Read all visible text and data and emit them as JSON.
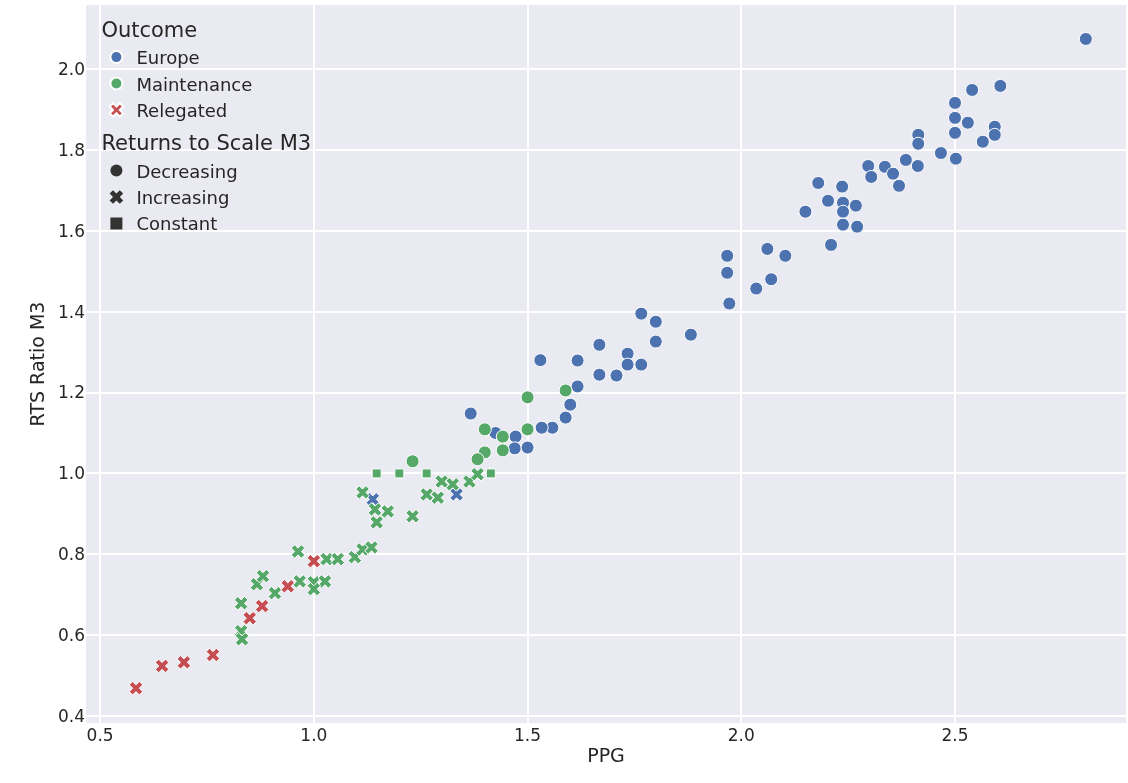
{
  "chart_data": {
    "type": "scatter",
    "xlabel": "PPG",
    "ylabel": "RTS Ratio M3",
    "legend_title": [
      "Outcome",
      "Returns to Scale M3"
    ],
    "xlim": [
      0.467,
      2.9
    ],
    "ylim": [
      0.383,
      2.158
    ],
    "xticks": [
      0.5,
      {
        "value": 1,
        "label": "1.0"
      },
      1.5,
      {
        "value": 2,
        "label": "2.0"
      },
      2.5
    ],
    "yticks": [
      0.4,
      0.6,
      0.8,
      {
        "value": 1,
        "label": "1.0"
      },
      1.2,
      1.4,
      1.6,
      1.8,
      {
        "value": 2,
        "label": "2.0"
      }
    ],
    "grid": true,
    "legend": "top left",
    "series": [
      {
        "name": "Europe",
        "color": "#4c72b0",
        "marker": "circle",
        "x": [
          1.882,
          1.972,
          1.967,
          1.967,
          2.035,
          2.07,
          2.061,
          2.103,
          2.15,
          2.21,
          2.18,
          2.203,
          2.236,
          2.238,
          2.238,
          2.238,
          2.268,
          2.271,
          2.297,
          2.304,
          2.336,
          2.355,
          2.369,
          2.385,
          2.413,
          2.806,
          2.54,
          2.606,
          2.5,
          2.5,
          2.53,
          2.5,
          2.593,
          2.593,
          2.565,
          2.502,
          2.467,
          2.414,
          2.414,
          1.367,
          1.53,
          1.617,
          1.668,
          1.766,
          1.8,
          1.8,
          1.734,
          1.734,
          1.766,
          1.668,
          1.708,
          1.617,
          1.6,
          1.589,
          1.558,
          1.533,
          1.472,
          1.47,
          1.5,
          1.425
        ],
        "values": [
          1.343,
          1.42,
          1.496,
          1.538,
          1.457,
          1.48,
          1.555,
          1.538,
          1.647,
          1.565,
          1.718,
          1.674,
          1.709,
          1.669,
          1.647,
          1.615,
          1.662,
          1.61,
          1.76,
          1.733,
          1.758,
          1.741,
          1.711,
          1.775,
          1.76,
          2.074,
          1.948,
          1.958,
          1.916,
          1.879,
          1.867,
          1.842,
          1.857,
          1.837,
          1.82,
          1.778,
          1.792,
          1.837,
          1.815,
          1.148,
          1.28,
          1.279,
          1.318,
          1.395,
          1.375,
          1.326,
          1.296,
          1.269,
          1.269,
          1.244,
          1.242,
          1.215,
          1.17,
          1.138,
          1.113,
          1.113,
          1.091,
          1.062,
          1.064,
          1.1
        ]
      },
      {
        "color": "#4c72b0",
        "marker": "cross",
        "x": [
          1.138,
          1.334
        ],
        "values": [
          0.936,
          0.948
        ]
      },
      {
        "name": "Maintenance",
        "color": "#55a868",
        "marker": "circle",
        "x": [
          1.231,
          1.4,
          1.5,
          1.589,
          1.442,
          1.5,
          1.442,
          1.4,
          1.383
        ],
        "values": [
          1.03,
          1.109,
          1.188,
          1.205,
          1.091,
          1.109,
          1.057,
          1.052,
          1.035
        ]
      },
      {
        "color": "#55a868",
        "marker": "cross",
        "x": [
          0.83,
          0.83,
          0.832,
          0.867,
          0.881,
          0.909,
          0.967,
          1.0,
          1.026,
          1.0,
          0.963,
          1.03,
          1.056,
          1.096,
          1.114,
          1.135,
          1.114,
          1.143,
          1.173,
          1.147,
          1.231,
          1.264,
          1.29,
          1.299,
          1.325,
          1.364,
          1.383
        ],
        "values": [
          0.679,
          0.61,
          0.59,
          0.726,
          0.746,
          0.704,
          0.733,
          0.731,
          0.733,
          0.714,
          0.807,
          0.788,
          0.788,
          0.793,
          0.812,
          0.817,
          0.953,
          0.911,
          0.906,
          0.879,
          0.894,
          0.948,
          0.94,
          0.98,
          0.973,
          0.98,
          0.998
        ]
      },
      {
        "color": "#55a868",
        "marker": "square",
        "x": [
          1.147,
          1.2,
          1.264,
          1.414
        ],
        "values": [
          1.0,
          1.0,
          1.0,
          1.0
        ]
      },
      {
        "name": "Relegated",
        "color": "#c44e52",
        "marker": "cross",
        "x": [
          0.584,
          0.645,
          0.696,
          0.764,
          0.85,
          0.879,
          0.939,
          1.0
        ],
        "values": [
          0.469,
          0.524,
          0.533,
          0.551,
          0.642,
          0.672,
          0.721,
          0.783
        ]
      },
      {
        "name": "Decreasing",
        "color": "#333333",
        "marker": "circle",
        "x": [
          null
        ],
        "values": [
          null
        ]
      },
      {
        "name": "Increasing",
        "color": "#333333",
        "marker": "cross",
        "x": [
          null
        ],
        "values": [
          null
        ]
      },
      {
        "name": "Constant",
        "color": "#333333",
        "marker": "square",
        "x": [
          null
        ],
        "values": [
          null
        ]
      }
    ]
  }
}
